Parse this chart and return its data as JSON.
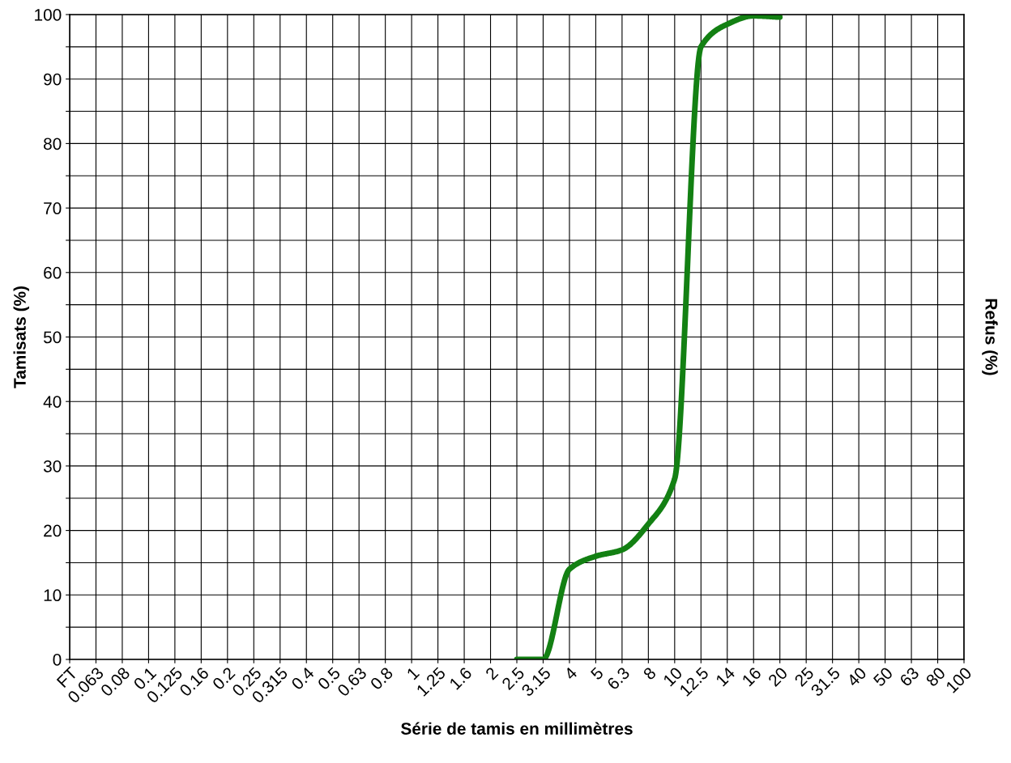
{
  "chart_data": {
    "type": "line",
    "xlabel": "Série de tamis en millimètres",
    "ylabel": "Tamisats (%)",
    "y2label": "Refus (%)",
    "categories": [
      "FT",
      "0.063",
      "0.08",
      "0.1",
      "0.125",
      "0.16",
      "0.2",
      "0.25",
      "0.315",
      "0.4",
      "0.5",
      "0.63",
      "0.8",
      "1",
      "1.25",
      "1.6",
      "2",
      "2.5",
      "3.15",
      "4",
      "5",
      "6.3",
      "8",
      "10",
      "12.5",
      "14",
      "16",
      "20",
      "25",
      "31.5",
      "40",
      "50",
      "63",
      "80",
      "100"
    ],
    "series": [
      {
        "color": "#138013",
        "values": [
          null,
          null,
          null,
          null,
          null,
          null,
          null,
          null,
          null,
          null,
          null,
          null,
          null,
          null,
          null,
          null,
          null,
          0,
          0,
          14,
          16,
          17,
          21,
          28,
          95,
          98.5,
          99.8,
          99.6,
          null,
          null,
          null,
          null,
          null,
          null,
          null
        ]
      }
    ],
    "ylim": [
      0,
      100
    ],
    "yticks": [
      0,
      {
        "value": 5,
        "label": null
      },
      10,
      {
        "value": 15,
        "label": null
      },
      20,
      {
        "value": 25,
        "label": null
      },
      30,
      {
        "value": 35,
        "label": null
      },
      40,
      {
        "value": 45,
        "label": null
      },
      50,
      {
        "value": 55,
        "label": null
      },
      60,
      {
        "value": 65,
        "label": null
      },
      70,
      {
        "value": 75,
        "label": null
      },
      80,
      {
        "value": 85,
        "label": null
      },
      90,
      {
        "value": 95,
        "label": null
      },
      100
    ],
    "grid": true,
    "marker": "none",
    "line_style": "solid"
  }
}
